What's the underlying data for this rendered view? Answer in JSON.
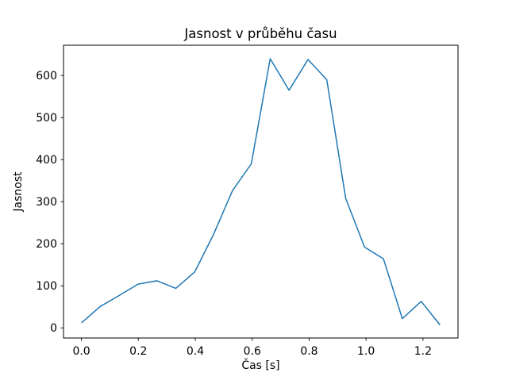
{
  "figure": {
    "background": "#ffffff",
    "title": "Jasnost v průběhu času",
    "xlabel": "Čas [s]",
    "ylabel": "Jasnost"
  },
  "chart_data": {
    "type": "line",
    "title": "Jasnost v průběhu času",
    "xlabel": "Čas [s]",
    "ylabel": "Jasnost",
    "x": [
      0.0,
      0.0663,
      0.1326,
      0.1989,
      0.2653,
      0.3316,
      0.3979,
      0.4642,
      0.5305,
      0.5968,
      0.6632,
      0.7295,
      0.7958,
      0.8621,
      0.9284,
      0.9947,
      1.0611,
      1.1274,
      1.1937,
      1.26
    ],
    "y": [
      12,
      51,
      77,
      104,
      112,
      94,
      133,
      222,
      326,
      390,
      640,
      565,
      638,
      590,
      308,
      192,
      164,
      22,
      63,
      7
    ],
    "xticks": [
      0.0,
      0.2,
      0.4,
      0.6,
      0.8,
      1.0,
      1.2
    ],
    "xtick_labels": [
      "0.0",
      "0.2",
      "0.4",
      "0.6",
      "0.8",
      "1.0",
      "1.2"
    ],
    "yticks": [
      0,
      100,
      200,
      300,
      400,
      500,
      600
    ],
    "ytick_labels": [
      "0",
      "100",
      "200",
      "300",
      "400",
      "500",
      "600"
    ],
    "xlim": [
      -0.063,
      1.323
    ],
    "ylim": [
      -24,
      672
    ],
    "grid": false,
    "legend": null,
    "line_color": "#1f77b4",
    "line_width": 1.5,
    "spine_color": "#000000"
  }
}
